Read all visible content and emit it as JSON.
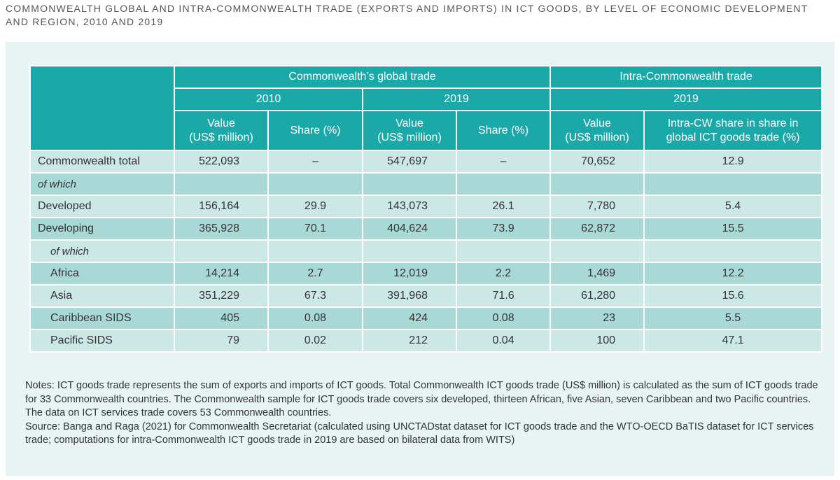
{
  "title": "COMMONWEALTH GLOBAL AND INTRA-COMMONWEALTH TRADE (EXPORTS AND IMPORTS) IN ICT GOODS, BY LEVEL OF ECONOMIC DEVELOPMENT AND REGION, 2010 AND 2019",
  "table": {
    "groups": [
      "Commonwealth’s global trade",
      "Intra-Commonwealth trade"
    ],
    "years": [
      "2010",
      "2019",
      "2019"
    ],
    "columns": [
      "Value\n(US$ million)",
      "Share (%)",
      "Value\n(US$ million)",
      "Share (%)",
      "Value\n(US$ million)",
      "Intra-CW share in share in\nglobal ICT goods trade (%)"
    ],
    "rows": [
      [
        "Commonwealth total",
        "522,093",
        "–",
        "547,697",
        "–",
        "70,652",
        "12.9"
      ],
      [
        "of which",
        null,
        null,
        null,
        null,
        null,
        null
      ],
      [
        "Developed",
        "156,164",
        "29.9",
        "143,073",
        "26.1",
        "7,780",
        "5.4"
      ],
      [
        "Developing",
        "365,928",
        "70.1",
        "404,624",
        "73.9",
        "62,872",
        "15.5"
      ],
      [
        "of which",
        null,
        null,
        null,
        null,
        null,
        null
      ],
      [
        "Africa",
        "14,214",
        "2.7",
        "12,019",
        "2.2",
        "1,469",
        "12.2"
      ],
      [
        "Asia",
        "351,229",
        "67.3",
        "391,968",
        "71.6",
        "61,280",
        "15.6"
      ],
      [
        "Caribbean SIDS",
        "405",
        "0.08",
        "424",
        "0.08",
        "23",
        "5.5"
      ],
      [
        "Pacific SIDS",
        "79",
        "0.02",
        "212",
        "0.04",
        "100",
        "47.1"
      ]
    ]
  },
  "notes": [
    "Notes: ICT goods trade represents the sum of exports and imports of ICT goods. Total Commonwealth ICT goods trade (US$ million) is calculated as the sum of ICT goods trade for 33 Commonwealth countries. The Commonwealth sample for ICT goods trade covers six developed, thirteen African, five Asian, seven Caribbean and two Pacific countries. The data on ICT services trade covers 53 Commonwealth countries.",
    "Source: Banga and Raga (2021) for Commonwealth Secretariat (calculated using UNCTADstat dataset for ICT goods trade and the WTO-OECD BaTIS dataset for ICT services trade; computations for intra-Commonwealth ICT goods trade in 2019 are based on bilateral data from WITS)"
  ]
}
